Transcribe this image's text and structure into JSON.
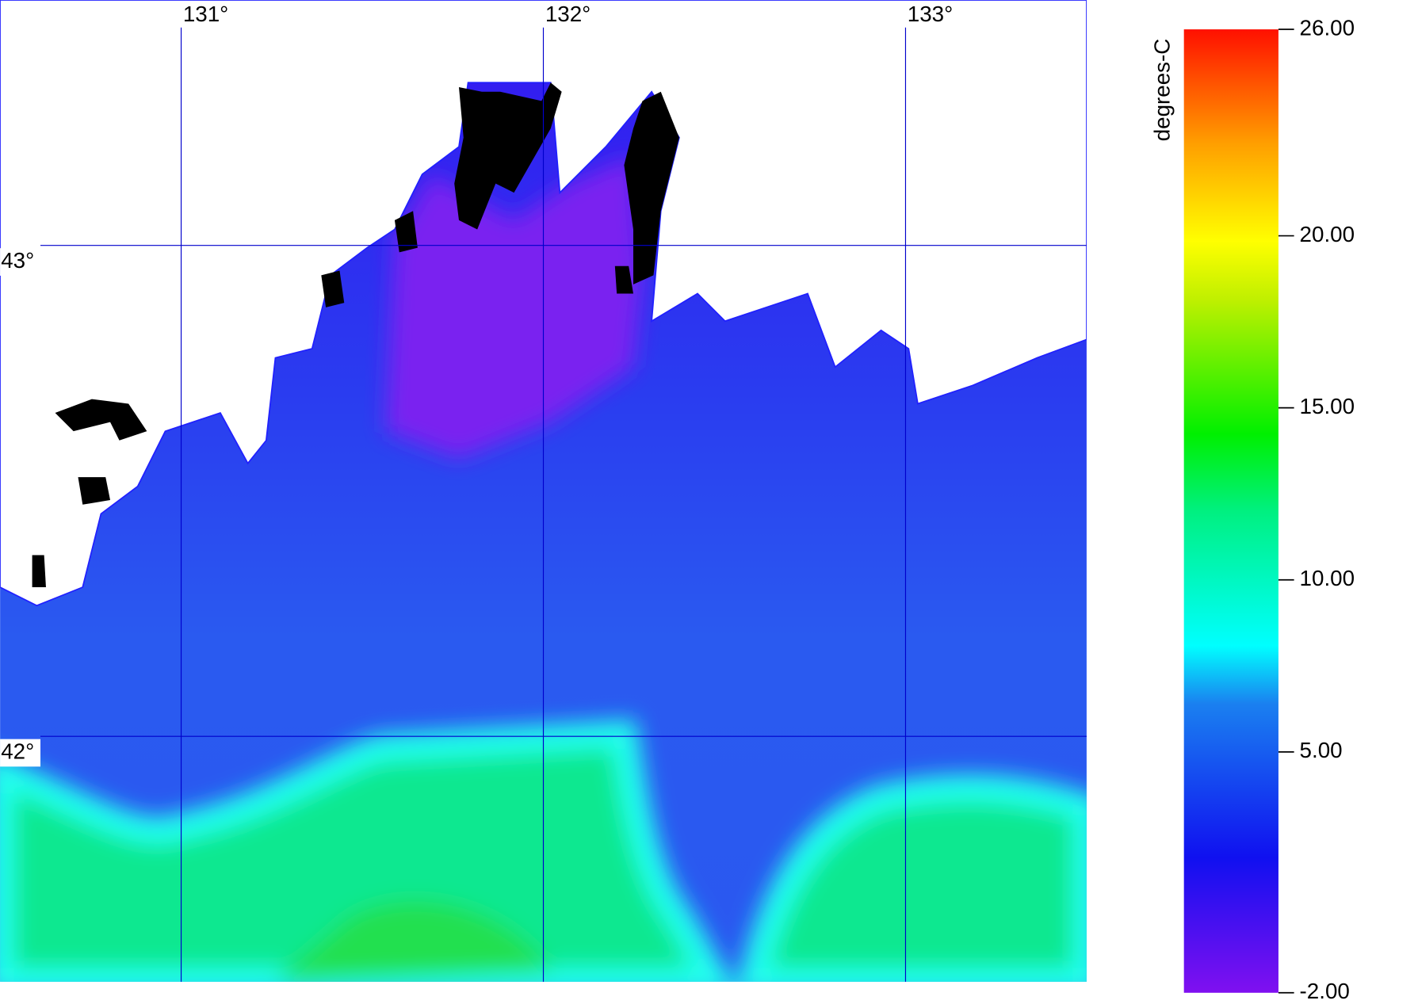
{
  "map": {
    "lonlim": [
      130.5,
      133.5
    ],
    "latlim": [
      41.5,
      43.5
    ],
    "lon_lines": [
      {
        "value": 131,
        "label": "131°"
      },
      {
        "value": 132,
        "label": "132°"
      },
      {
        "value": 133,
        "label": "133°"
      }
    ],
    "lat_lines": [
      {
        "value": 42,
        "label": "42°"
      },
      {
        "value": 43,
        "label": "43°"
      }
    ],
    "grid_color": "#0000cc"
  },
  "colorbar": {
    "label": "degrees-C",
    "range": [
      -2,
      26
    ],
    "ticks": [
      {
        "value": -2,
        "label": "-2.00"
      },
      {
        "value": 5,
        "label": "5.00"
      },
      {
        "value": 10,
        "label": "10.00"
      },
      {
        "value": 15,
        "label": "15.00"
      },
      {
        "value": 20,
        "label": "20.00"
      },
      {
        "value": 26,
        "label": "26.00"
      }
    ]
  }
}
